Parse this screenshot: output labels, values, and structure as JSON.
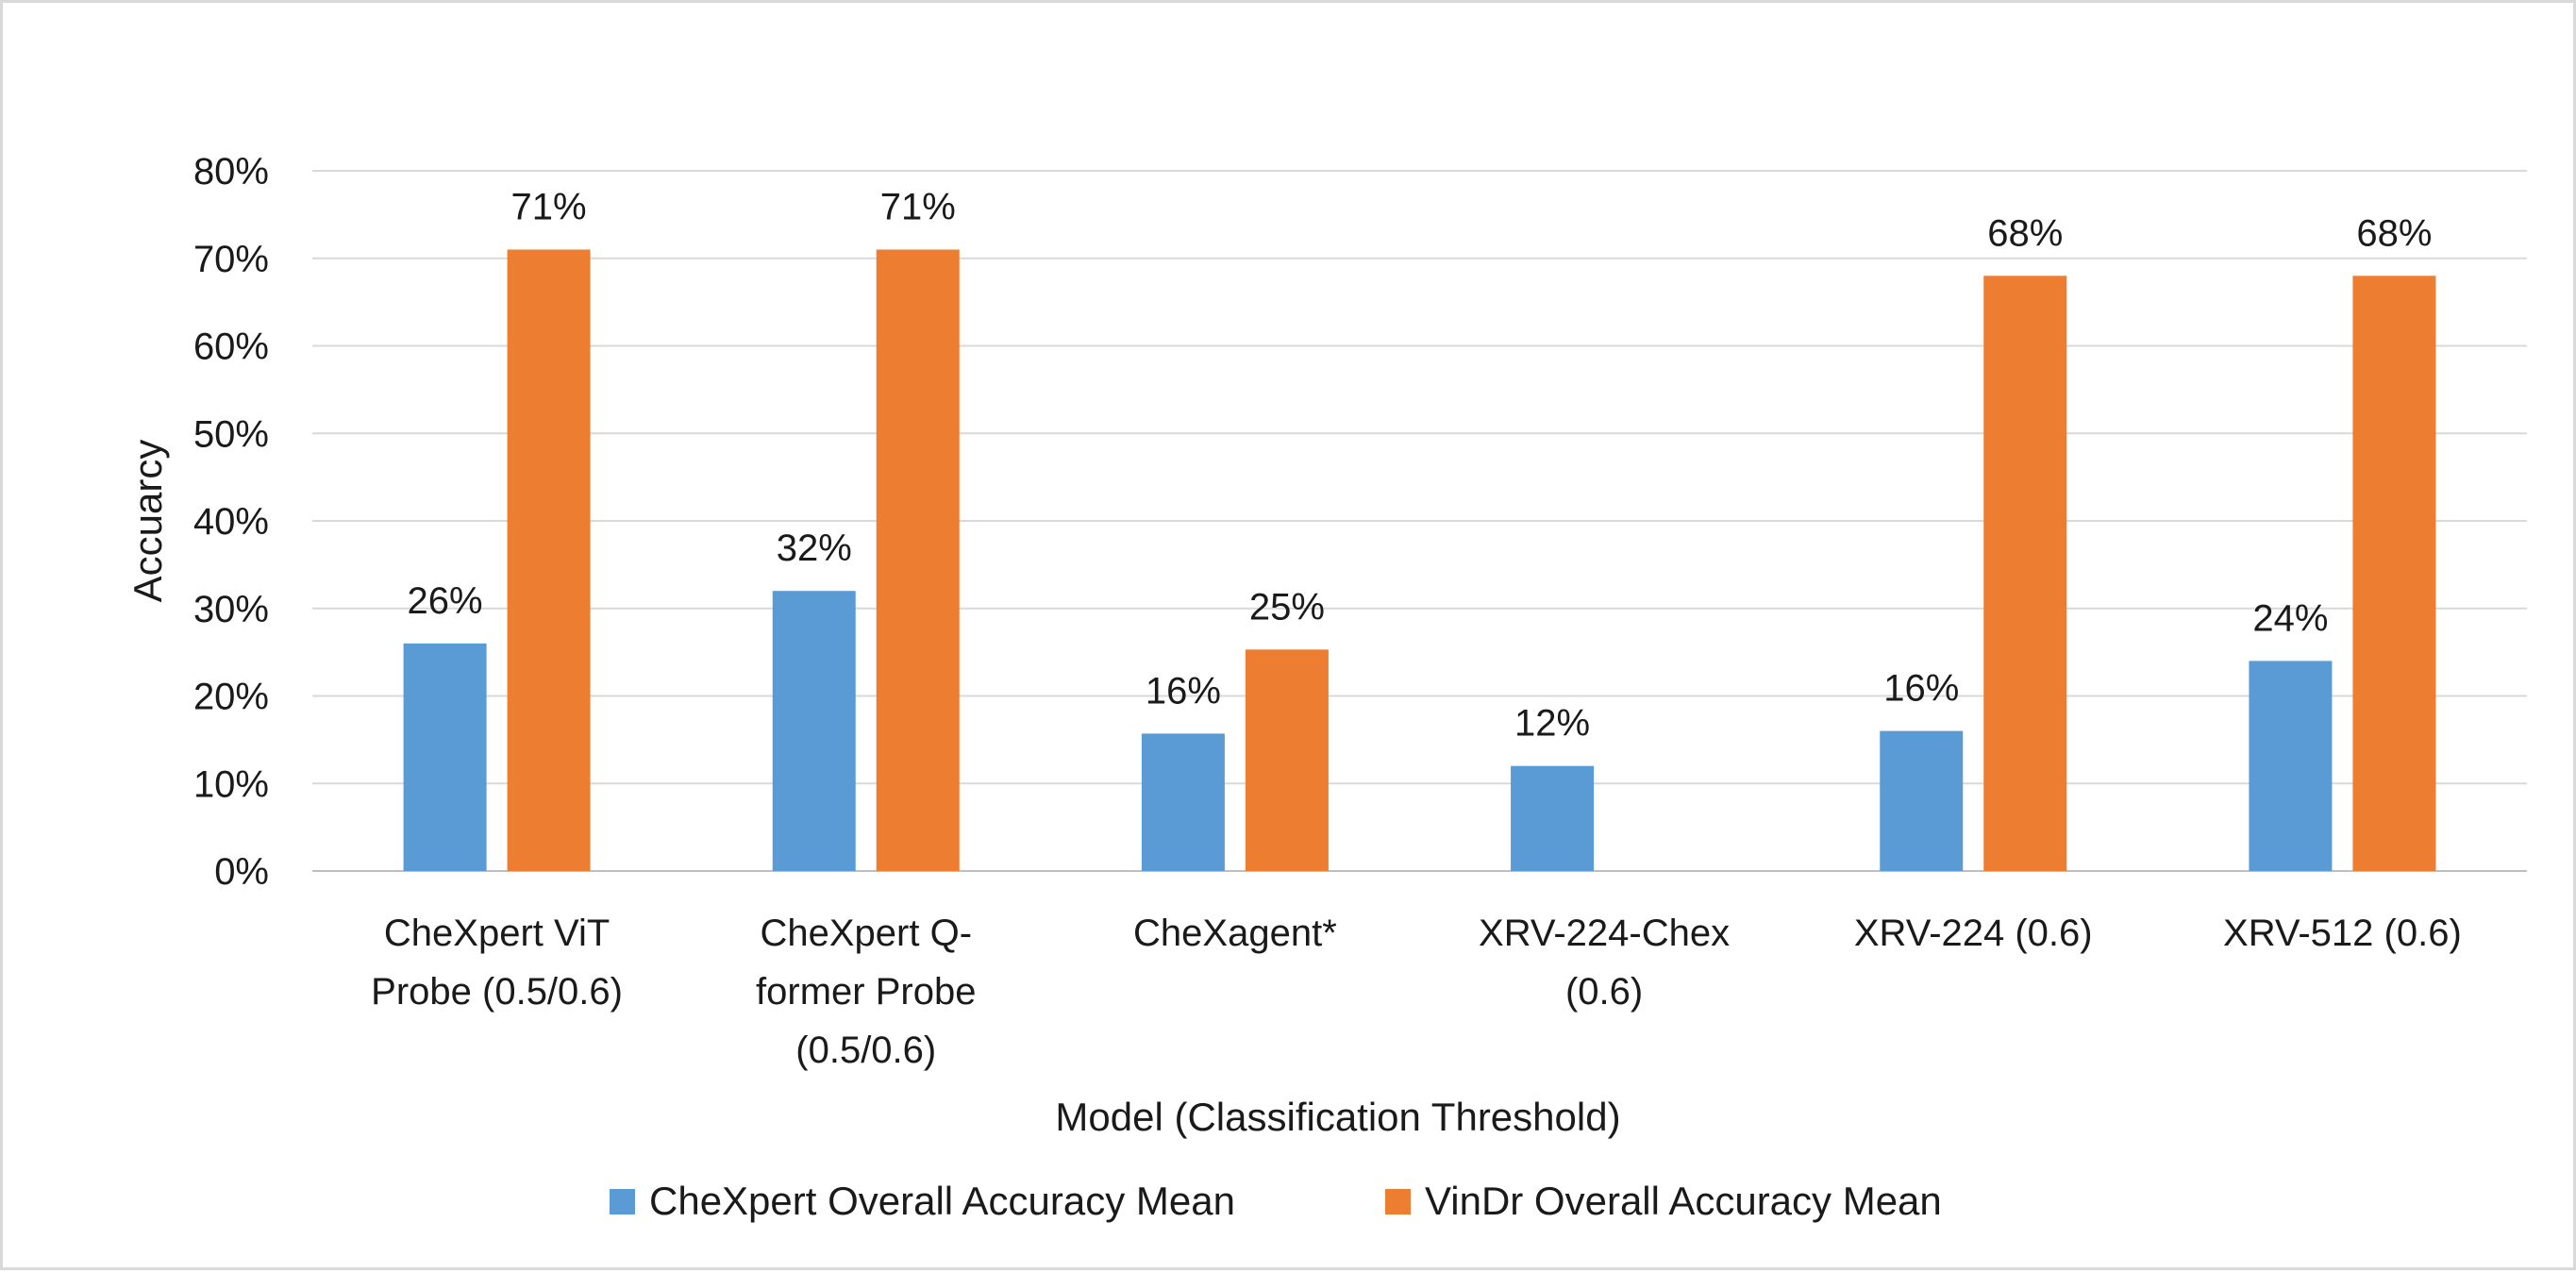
{
  "chart_data": {
    "type": "bar",
    "title": "",
    "xlabel": "Model (Classification Threshold)",
    "ylabel": "Accuarcy",
    "ylim": [
      0,
      0.8
    ],
    "yticks": [
      0,
      0.1,
      0.2,
      0.3,
      0.4,
      0.5,
      0.6,
      0.7,
      0.8
    ],
    "yticklabels": [
      "0%",
      "10%",
      "20%",
      "30%",
      "40%",
      "50%",
      "60%",
      "70%",
      "80%"
    ],
    "grid": true,
    "legend_position": "bottom",
    "categories": [
      [
        "CheXpert ViT",
        "Probe (0.5/0.6)"
      ],
      [
        "CheXpert Q-",
        "former Probe",
        "(0.5/0.6)"
      ],
      [
        "CheXagent*"
      ],
      [
        "XRV-224-Chex",
        "(0.6)"
      ],
      [
        "XRV-224 (0.6)"
      ],
      [
        "XRV-512 (0.6)"
      ]
    ],
    "series": [
      {
        "name": "CheXpert Overall Accuracy Mean",
        "color": "#5b9bd5",
        "values": [
          0.26,
          0.32,
          0.157,
          0.12,
          0.16,
          0.24
        ],
        "labels": [
          "26%",
          "32%",
          "16%",
          "12%",
          "16%",
          "24%"
        ]
      },
      {
        "name": "VinDr Overall Accuracy Mean",
        "color": "#ed7d31",
        "values": [
          0.71,
          0.71,
          0.253,
          null,
          0.68,
          0.68
        ],
        "labels": [
          "71%",
          "71%",
          "25%",
          "",
          "68%",
          "68%"
        ]
      }
    ]
  }
}
